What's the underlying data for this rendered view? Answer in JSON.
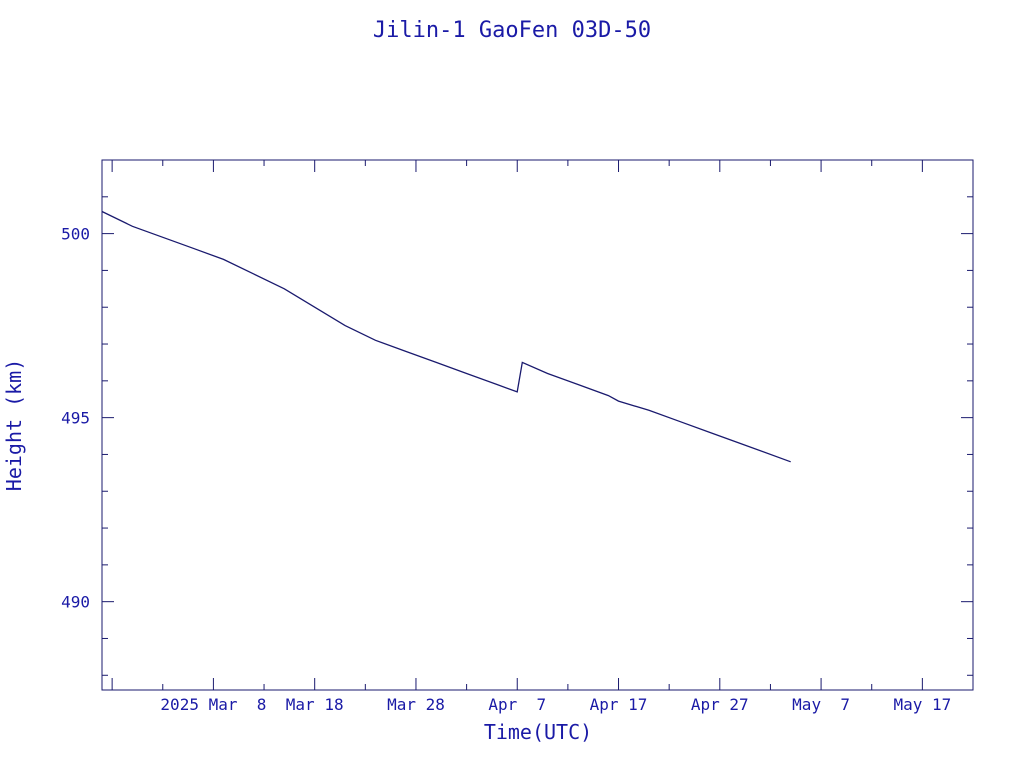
{
  "chart_data": {
    "type": "line",
    "title": "Jilin-1 GaoFen 03D-50",
    "xlabel": "Time(UTC)",
    "ylabel": "Height (km)",
    "xlim": [
      "2025-02-25",
      "2025-05-22"
    ],
    "ylim": [
      487.6,
      502.0
    ],
    "x_major_ticks": [
      {
        "date": "2025-02-26",
        "label": ""
      },
      {
        "date": "2025-03-08",
        "label": "2025 Mar  8"
      },
      {
        "date": "2025-03-18",
        "label": "Mar 18"
      },
      {
        "date": "2025-03-28",
        "label": "Mar 28"
      },
      {
        "date": "2025-04-07",
        "label": "Apr  7"
      },
      {
        "date": "2025-04-17",
        "label": "Apr 17"
      },
      {
        "date": "2025-04-27",
        "label": "Apr 27"
      },
      {
        "date": "2025-05-07",
        "label": "May  7"
      },
      {
        "date": "2025-05-17",
        "label": "May 17"
      }
    ],
    "x_minor_ticks": [
      "2025-03-03",
      "2025-03-13",
      "2025-03-23",
      "2025-04-02",
      "2025-04-12",
      "2025-04-22",
      "2025-05-02",
      "2025-05-12",
      "2025-05-22"
    ],
    "y_major_ticks": [
      {
        "value": 490,
        "label": "490"
      },
      {
        "value": 495,
        "label": "495"
      },
      {
        "value": 500,
        "label": "500"
      }
    ],
    "y_minor_ticks": [
      488,
      489,
      491,
      492,
      493,
      494,
      496,
      497,
      498,
      499,
      501,
      502
    ],
    "line_color": "#1a1a6e",
    "text_color": "#1a1aa6",
    "series": [
      {
        "points": [
          [
            "2025-02-25",
            500.6
          ],
          [
            "2025-02-28",
            500.2
          ],
          [
            "2025-03-03",
            499.9
          ],
          [
            "2025-03-06",
            499.6
          ],
          [
            "2025-03-09",
            499.3
          ],
          [
            "2025-03-12",
            498.9
          ],
          [
            "2025-03-15",
            498.5
          ],
          [
            "2025-03-18",
            498.0
          ],
          [
            "2025-03-21",
            497.5
          ],
          [
            "2025-03-24",
            497.1
          ],
          [
            "2025-03-27",
            496.8
          ],
          [
            "2025-03-30",
            496.5
          ],
          [
            "2025-04-02",
            496.2
          ],
          [
            "2025-04-05",
            495.9
          ],
          [
            "2025-04-07",
            495.7
          ],
          [
            "2025-04-07T12:00",
            496.5
          ],
          [
            "2025-04-10",
            496.2
          ],
          [
            "2025-04-13",
            495.9
          ],
          [
            "2025-04-16",
            495.6
          ],
          [
            "2025-04-17",
            495.45
          ],
          [
            "2025-04-20",
            495.2
          ],
          [
            "2025-04-23",
            494.9
          ],
          [
            "2025-04-26",
            494.6
          ],
          [
            "2025-04-29",
            494.3
          ],
          [
            "2025-05-04",
            493.8
          ]
        ]
      }
    ]
  }
}
